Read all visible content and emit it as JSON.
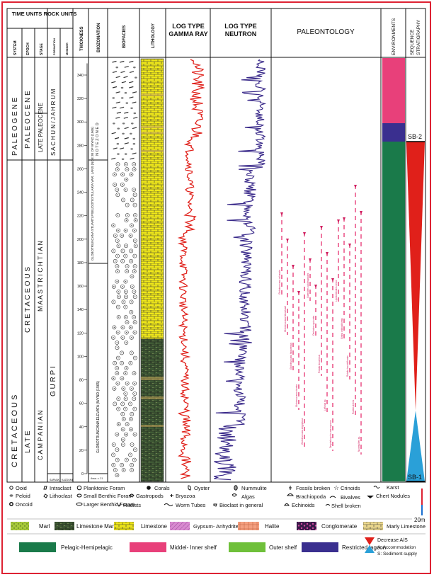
{
  "headers": {
    "time_units": "TIME UNITS",
    "rock_units": "ROCK UNITS",
    "system": "SYSTEM",
    "epoch": "EPOCH",
    "stage": "STAGE",
    "formation": "FORMATION",
    "member": "MEMBER",
    "thickness": "THICKNESS",
    "biozonation": "BIOZONATION",
    "biofacies": "BIOFACIES",
    "lithology": "LITHOLOGY",
    "gamma_ray": [
      "LOG TYPE",
      "GAMMA RAY"
    ],
    "neutron": [
      "LOG TYPE",
      "NEUTRON"
    ],
    "paleontology": "PALEONTOLOGY",
    "environments": "ENVIRONMENTS",
    "sequence": [
      "SEQUENCE",
      "STRATIGRAPHY"
    ]
  },
  "column_text": {
    "system_upper": "P A L E O G E N E",
    "system_lower": "C R E T A C E O U S",
    "epoch_upper": "P A L E O C E N E",
    "epoch_lower": "L A T E",
    "epoch_lower2": "C R E T A C E O U S",
    "stage_upper": "LATE PALEOCENE",
    "stage_mid": "M A A S T R I C H T I A N",
    "stage_lower": "C A M P A N I A N",
    "formation_upper": "S A C H U N / J A H R U M",
    "formation_lower": "G U R P I",
    "formation_small": "SARVAK",
    "member_small": "KAZDUMI",
    "biozone_upper": "N O T E   Z O N E D",
    "biozone_mid": "GLOBOTRUNCANA STUARTI,PSEUDOTEXTULARIA VAR. LANS (NOE 30 OF WYND (1965)",
    "biozone_lower": "GLOBOTRUNCANA ELEVATA (WYND (1965)",
    "biozone_small": "Assa. z. 21"
  },
  "thickness_axis": {
    "min": 0,
    "max": 350,
    "ticks": [
      "0",
      "20",
      "40",
      "60",
      "80",
      "100",
      "120",
      "140",
      "160",
      "180",
      "200",
      "220",
      "240",
      "260",
      "280",
      "300",
      "320",
      "340"
    ]
  },
  "paleontology_taxa": [
    "Globotruncana calcarata",
    "Globotruncana falsostuarti",
    "Globotruncana havanensis",
    "Globotruncana elevata",
    "Globotruncana aegyptiaca",
    "Siderolites calcitrapoides",
    "Orbitoides apiculata",
    "Rotalia skourensis",
    "Loftusia sp.",
    "Omphalocyclus macroporus",
    "Lepidorbitoides minor",
    "Sirtina orbitoidiformis",
    "Rotalia trochidiformis",
    "Rudists debris",
    "Nummulites sp."
  ],
  "sequence_labels": {
    "top": "SB-2",
    "bottom": "SB-1"
  },
  "legend_row1": {
    "ooid": "Ooid",
    "peloid": "Peloid",
    "oncoid": "Oncoid",
    "intraclast": "Intraclast",
    "lithoclast": "Lithoclast",
    "planktonic": "Planktonic Foram",
    "small_benthic": "Small Benthic Foram",
    "larger_benthic": "Larger Benthic Foram",
    "corals": "Corals",
    "gastropods": "Gastropods",
    "rudists": "Rudists",
    "oyster": "Oyster",
    "bryozoa": "Bryozoa",
    "worm_tubes": "Worm Tubes",
    "nummulite": "Nummulite",
    "algas": "Algas",
    "bioclast": "Bioclast in general",
    "fossils_broken": "Fossils broken",
    "brachiopoda": "Brachiopoda",
    "echinoids": "Echinoids",
    "crinoids": "Crinoids",
    "bivalves": "Bivalves",
    "shell_broken": "Shell broken",
    "karst": "Karst",
    "chert": "Chert Nodules",
    "scale": "20m"
  },
  "legend_row2": [
    "Marl",
    "Limestone Marl",
    "Limestone",
    "Gypsum- Anhydrite",
    "Halite",
    "Conglomerate",
    "Marly Limestone"
  ],
  "legend_row3": [
    "Pelagic-Hemipelagic",
    "Middel- Inner shelf",
    "Outer shelf",
    "Restricted lagoon"
  ],
  "legend_decrease": {
    "title": "Decrease A/S",
    "a": "A: Accommodation",
    "s": "S: Sediment supply"
  },
  "colors": {
    "pelagic": "#1a7a4a",
    "inner_shelf": "#e8407a",
    "outer_shelf": "#6fc03a",
    "lagoon": "#3a2f8f",
    "gamma": "#e0201a",
    "neutron": "#3a2a8a",
    "limestone": "#e8e010",
    "marl_limestone": "#4a6a3a",
    "red_tri": "#e0201a",
    "blue_tri": "#2aa0d8"
  }
}
